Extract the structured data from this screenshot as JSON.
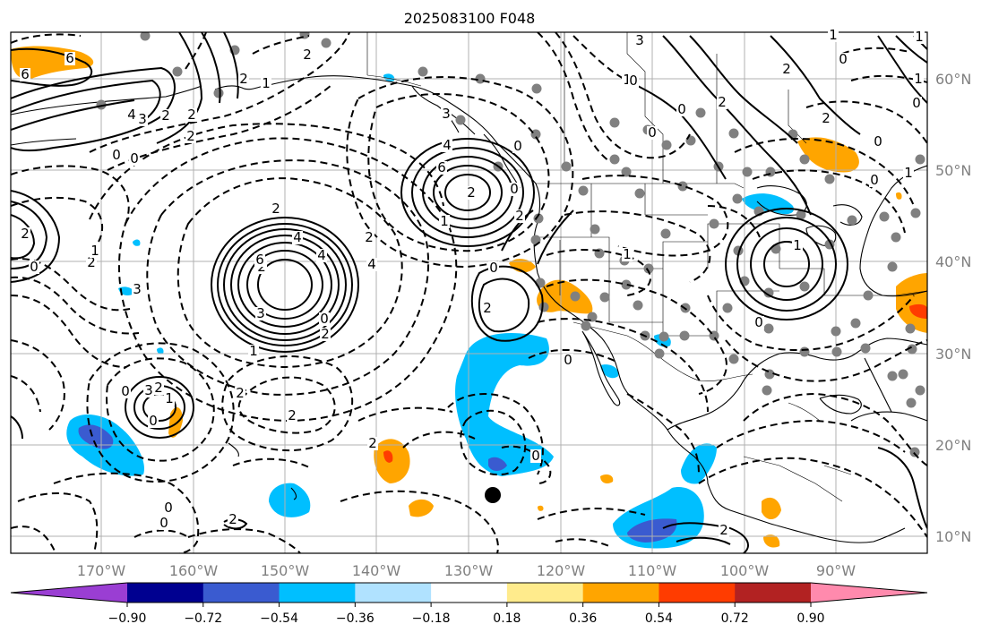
{
  "title": "2025083100 F048",
  "lon_labels": [
    "170°W",
    "160°W",
    "150°W",
    "140°W",
    "130°W",
    "120°W",
    "110°W",
    "100°W",
    "90°W"
  ],
  "lat_labels": [
    "60°N",
    "50°N",
    "40°N",
    "30°N",
    "20°N",
    "10°N"
  ],
  "colorbar": {
    "colors": [
      "#9a3ed3",
      "#000090",
      "#3a5bd0",
      "#00bfff",
      "#b0e2ff",
      "#ffffff",
      "#ffeb8c",
      "#ffa500",
      "#ff3c00",
      "#b22222",
      "#ff8aad"
    ],
    "ticks": [
      "−0.90",
      "−0.72",
      "−0.54",
      "−0.36",
      "−0.18",
      "0.18",
      "0.36",
      "0.54",
      "0.72",
      "0.90"
    ]
  },
  "contour_labels": [
    "6",
    "6",
    "4",
    "3",
    "2",
    "2",
    "2",
    "0",
    "0",
    "2",
    "1",
    "2",
    "3",
    "4",
    "2",
    "6",
    "4",
    "2",
    "0",
    "2",
    "2",
    "3",
    "2",
    "4",
    "6",
    "3",
    "2",
    "0",
    "2",
    "1",
    "0",
    "2",
    "1",
    "3",
    "2",
    "0",
    "2",
    "2",
    "1",
    "4",
    "2",
    "1",
    "0",
    "0",
    "0",
    "0",
    "0",
    "2",
    "0",
    "2",
    "1",
    "0",
    "3",
    "0",
    "0",
    "2",
    "2",
    "1",
    "0",
    "0",
    "1",
    "1",
    "0",
    "0",
    "1",
    "2",
    "2",
    "0",
    "0",
    "1",
    "1"
  ]
}
